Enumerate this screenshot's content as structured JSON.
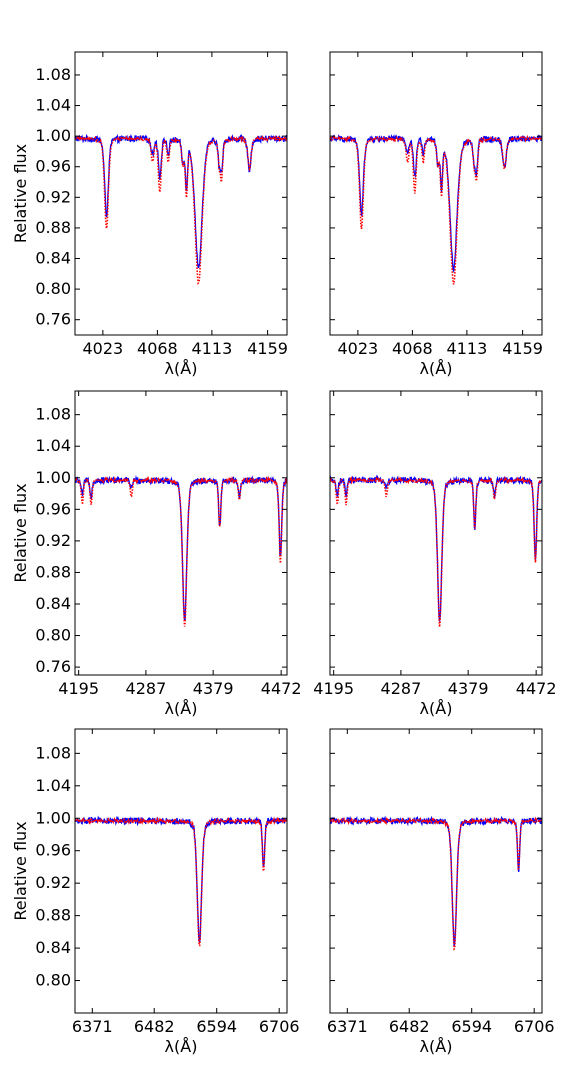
{
  "figure": {
    "ylabel": "Relative flux",
    "xlabel": "λ(Å)",
    "series_colors": {
      "observed": "#0000ff",
      "model": "#ff0000"
    }
  },
  "chart_data": [
    {
      "type": "line",
      "row": 1,
      "col": 1,
      "xlabel": "λ(Å)",
      "ylabel": "Relative flux",
      "xlim": [
        4000,
        4175
      ],
      "ylim": [
        0.74,
        1.11
      ],
      "xticks": [
        4023,
        4068,
        4113,
        4159
      ],
      "yticks": [
        0.76,
        0.8,
        0.84,
        0.88,
        0.92,
        0.96,
        1.0,
        1.04,
        1.08
      ],
      "show_yticklabels": true,
      "continuum": 0.997,
      "lines": [
        {
          "center": 4026,
          "depth_obs": 0.1,
          "depth_model": 0.12,
          "width": 1.6
        },
        {
          "center": 4064,
          "depth_obs": 0.02,
          "depth_model": 0.03,
          "width": 1.2
        },
        {
          "center": 4070,
          "depth_obs": 0.05,
          "depth_model": 0.07,
          "width": 1.2
        },
        {
          "center": 4077,
          "depth_obs": 0.02,
          "depth_model": 0.03,
          "width": 1.0
        },
        {
          "center": 4089,
          "depth_obs": 0.03,
          "depth_model": 0.03,
          "width": 1.0
        },
        {
          "center": 4092,
          "depth_obs": 0.06,
          "depth_model": 0.07,
          "width": 1.0
        },
        {
          "center": 4102,
          "depth_obs": 0.17,
          "depth_model": 0.19,
          "width": 3.0
        },
        {
          "center": 4119,
          "depth_obs": 0.03,
          "depth_model": 0.03,
          "width": 1.0
        },
        {
          "center": 4121,
          "depth_obs": 0.04,
          "depth_model": 0.05,
          "width": 1.0
        },
        {
          "center": 4144,
          "depth_obs": 0.04,
          "depth_model": 0.04,
          "width": 1.4
        }
      ]
    },
    {
      "type": "line",
      "row": 1,
      "col": 2,
      "xlabel": "λ(Å)",
      "ylabel": "",
      "xlim": [
        4000,
        4175
      ],
      "ylim": [
        0.74,
        1.11
      ],
      "xticks": [
        4023,
        4068,
        4113,
        4159
      ],
      "yticks": [
        0.76,
        0.8,
        0.84,
        0.88,
        0.92,
        0.96,
        1.0,
        1.04,
        1.08
      ],
      "show_yticklabels": false,
      "continuum": 0.997,
      "lines": [
        {
          "center": 4026,
          "depth_obs": 0.1,
          "depth_model": 0.12,
          "width": 1.6
        },
        {
          "center": 4064,
          "depth_obs": 0.02,
          "depth_model": 0.03,
          "width": 1.2
        },
        {
          "center": 4070,
          "depth_obs": 0.05,
          "depth_model": 0.07,
          "width": 1.2
        },
        {
          "center": 4077,
          "depth_obs": 0.02,
          "depth_model": 0.03,
          "width": 1.0
        },
        {
          "center": 4089,
          "depth_obs": 0.03,
          "depth_model": 0.03,
          "width": 1.0
        },
        {
          "center": 4092,
          "depth_obs": 0.06,
          "depth_model": 0.07,
          "width": 1.0
        },
        {
          "center": 4102,
          "depth_obs": 0.17,
          "depth_model": 0.19,
          "width": 3.0
        },
        {
          "center": 4119,
          "depth_obs": 0.03,
          "depth_model": 0.03,
          "width": 1.0
        },
        {
          "center": 4121,
          "depth_obs": 0.04,
          "depth_model": 0.05,
          "width": 1.0
        },
        {
          "center": 4144,
          "depth_obs": 0.04,
          "depth_model": 0.04,
          "width": 1.4
        }
      ]
    },
    {
      "type": "line",
      "row": 2,
      "col": 1,
      "xlabel": "λ(Å)",
      "ylabel": "Relative flux",
      "xlim": [
        4190,
        4480
      ],
      "ylim": [
        0.75,
        1.11
      ],
      "xticks": [
        4195,
        4287,
        4379,
        4472
      ],
      "yticks": [
        0.76,
        0.8,
        0.84,
        0.88,
        0.92,
        0.96,
        1.0,
        1.04,
        1.08
      ],
      "show_yticklabels": true,
      "continuum": 0.997,
      "lines": [
        {
          "center": 4200,
          "depth_obs": 0.02,
          "depth_model": 0.03,
          "width": 1.5
        },
        {
          "center": 4212,
          "depth_obs": 0.02,
          "depth_model": 0.03,
          "width": 1.5
        },
        {
          "center": 4267,
          "depth_obs": 0.01,
          "depth_model": 0.02,
          "width": 1.5
        },
        {
          "center": 4340,
          "depth_obs": 0.18,
          "depth_model": 0.185,
          "width": 3.0
        },
        {
          "center": 4388,
          "depth_obs": 0.06,
          "depth_model": 0.06,
          "width": 1.5
        },
        {
          "center": 4415,
          "depth_obs": 0.02,
          "depth_model": 0.025,
          "width": 1.5
        },
        {
          "center": 4471,
          "depth_obs": 0.1,
          "depth_model": 0.105,
          "width": 1.8
        }
      ]
    },
    {
      "type": "line",
      "row": 2,
      "col": 2,
      "xlabel": "λ(Å)",
      "ylabel": "",
      "xlim": [
        4190,
        4480
      ],
      "ylim": [
        0.75,
        1.11
      ],
      "xticks": [
        4195,
        4287,
        4379,
        4472
      ],
      "yticks": [
        0.76,
        0.8,
        0.84,
        0.88,
        0.92,
        0.96,
        1.0,
        1.04,
        1.08
      ],
      "show_yticklabels": false,
      "continuum": 0.997,
      "lines": [
        {
          "center": 4200,
          "depth_obs": 0.02,
          "depth_model": 0.03,
          "width": 1.5
        },
        {
          "center": 4212,
          "depth_obs": 0.02,
          "depth_model": 0.03,
          "width": 1.5
        },
        {
          "center": 4267,
          "depth_obs": 0.01,
          "depth_model": 0.02,
          "width": 1.5
        },
        {
          "center": 4340,
          "depth_obs": 0.18,
          "depth_model": 0.185,
          "width": 3.0
        },
        {
          "center": 4388,
          "depth_obs": 0.06,
          "depth_model": 0.06,
          "width": 1.5
        },
        {
          "center": 4415,
          "depth_obs": 0.02,
          "depth_model": 0.025,
          "width": 1.5
        },
        {
          "center": 4471,
          "depth_obs": 0.1,
          "depth_model": 0.105,
          "width": 1.8
        }
      ]
    },
    {
      "type": "line",
      "row": 3,
      "col": 1,
      "xlabel": "λ(Å)",
      "ylabel": "Relative flux",
      "xlim": [
        6340,
        6720
      ],
      "ylim": [
        0.76,
        1.11
      ],
      "xticks": [
        6371,
        6482,
        6594,
        6706
      ],
      "yticks": [
        0.8,
        0.84,
        0.88,
        0.92,
        0.96,
        1.0,
        1.04,
        1.08
      ],
      "show_yticklabels": true,
      "continuum": 0.997,
      "lines": [
        {
          "center": 6563,
          "depth_obs": 0.15,
          "depth_model": 0.155,
          "width": 4.0
        },
        {
          "center": 6678,
          "depth_obs": 0.06,
          "depth_model": 0.065,
          "width": 2.0
        }
      ]
    },
    {
      "type": "line",
      "row": 3,
      "col": 2,
      "xlabel": "λ(Å)",
      "ylabel": "",
      "xlim": [
        6340,
        6720
      ],
      "ylim": [
        0.76,
        1.11
      ],
      "xticks": [
        6371,
        6482,
        6594,
        6706
      ],
      "yticks": [
        0.8,
        0.84,
        0.88,
        0.92,
        0.96,
        1.0,
        1.04,
        1.08
      ],
      "show_yticklabels": false,
      "continuum": 0.997,
      "lines": [
        {
          "center": 6563,
          "depth_obs": 0.155,
          "depth_model": 0.158,
          "width": 4.0
        },
        {
          "center": 6678,
          "depth_obs": 0.065,
          "depth_model": 0.06,
          "width": 2.0
        }
      ]
    }
  ]
}
